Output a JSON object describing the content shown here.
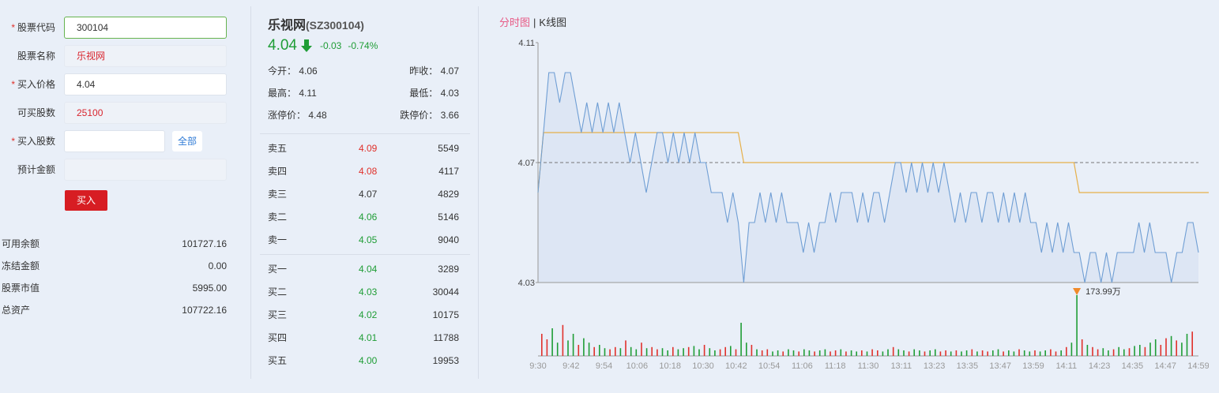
{
  "form": {
    "code_label": "股票代码",
    "code_value": "300104",
    "name_label": "股票名称",
    "name_value": "乐视网",
    "price_label": "买入价格",
    "price_value": "4.04",
    "avail_label": "可买股数",
    "avail_value": "25100",
    "qty_label": "买入股数",
    "qty_value": "",
    "all_button": "全部",
    "est_label": "预计金额",
    "est_value": "",
    "buy_button": "买入",
    "required_mark": "*"
  },
  "account": [
    {
      "label": "可用余额",
      "value": "101727.16"
    },
    {
      "label": "冻结金额",
      "value": "0.00"
    },
    {
      "label": "股票市值",
      "value": "5995.00"
    },
    {
      "label": "总资产",
      "value": "107722.16"
    }
  ],
  "quote": {
    "name": "乐视网",
    "code": "(SZ300104)",
    "price": "4.04",
    "change": "-0.03",
    "change_pct": "-0.74%",
    "open_label": "今开：",
    "open": "4.06",
    "prev_close_label": "昨收：",
    "prev_close": "4.07",
    "high_label": "最高：",
    "high": "4.11",
    "low_label": "最低：",
    "low": "4.03",
    "limit_up_label": "涨停价：",
    "limit_up": "4.48",
    "limit_down_label": "跌停价：",
    "limit_down": "3.66",
    "sell": [
      {
        "name": "卖五",
        "price": "4.09",
        "qty": "5549",
        "dir": "up"
      },
      {
        "name": "卖四",
        "price": "4.08",
        "qty": "4117",
        "dir": "up"
      },
      {
        "name": "卖三",
        "price": "4.07",
        "qty": "4829",
        "dir": "flat"
      },
      {
        "name": "卖二",
        "price": "4.06",
        "qty": "5146",
        "dir": "dn"
      },
      {
        "name": "卖一",
        "price": "4.05",
        "qty": "9040",
        "dir": "dn"
      }
    ],
    "buy": [
      {
        "name": "买一",
        "price": "4.04",
        "qty": "3289",
        "dir": "dn"
      },
      {
        "name": "买二",
        "price": "4.03",
        "qty": "30044",
        "dir": "dn"
      },
      {
        "name": "买三",
        "price": "4.02",
        "qty": "10175",
        "dir": "dn"
      },
      {
        "name": "买四",
        "price": "4.01",
        "qty": "11788",
        "dir": "dn"
      },
      {
        "name": "买五",
        "price": "4.00",
        "qty": "19953",
        "dir": "dn"
      }
    ]
  },
  "chart_tabs": {
    "intraday": "分时图",
    "separator": "|",
    "kline": "K线图"
  },
  "colors": {
    "price_line": "#6f9ed4",
    "avg_line": "#e6b04a",
    "fill": "#dde6f4",
    "up": "#e0312b",
    "down": "#1f9d36",
    "marker": "#f08a2a"
  },
  "chart_data": {
    "type": "line",
    "y_ticks": [
      "4.11",
      "4.07",
      "4.03"
    ],
    "ylim": [
      4.03,
      4.11
    ],
    "prev_close": 4.07,
    "x_ticks": [
      "9:30",
      "9:42",
      "9:54",
      "10:06",
      "10:18",
      "10:30",
      "10:42",
      "10:54",
      "11:06",
      "11:18",
      "11:30",
      "13:11",
      "13:23",
      "13:35",
      "13:47",
      "13:59",
      "14:11",
      "14:23",
      "14:35",
      "14:47",
      "14:59"
    ],
    "price_pattern": [
      4.06,
      4.08,
      4.1,
      4.1,
      4.09,
      4.1,
      4.1,
      4.09,
      4.08,
      4.09,
      4.08,
      4.09,
      4.08,
      4.09,
      4.08,
      4.09,
      4.08,
      4.07,
      4.08,
      4.07,
      4.06,
      4.07,
      4.08,
      4.08,
      4.07,
      4.08,
      4.07,
      4.08,
      4.07,
      4.08,
      4.07,
      4.07,
      4.06,
      4.06,
      4.06,
      4.05,
      4.06,
      4.05,
      4.03,
      4.05,
      4.05,
      4.06,
      4.05,
      4.06,
      4.05,
      4.06,
      4.05,
      4.05,
      4.05,
      4.04,
      4.05,
      4.04,
      4.05,
      4.05,
      4.06,
      4.05,
      4.06,
      4.06,
      4.06,
      4.05,
      4.06,
      4.05,
      4.06,
      4.06,
      4.05,
      4.06,
      4.07,
      4.07,
      4.06,
      4.07,
      4.06,
      4.07,
      4.06,
      4.07,
      4.06,
      4.07,
      4.06,
      4.05,
      4.06,
      4.05,
      4.06,
      4.06,
      4.05,
      4.06,
      4.06,
      4.05,
      4.06,
      4.05,
      4.06,
      4.05,
      4.06,
      4.05,
      4.05,
      4.04,
      4.05,
      4.04,
      4.05,
      4.04,
      4.05,
      4.04,
      4.04,
      4.03,
      4.04,
      4.04,
      4.03,
      4.04,
      4.03,
      4.04,
      4.04,
      4.04,
      4.04,
      4.05,
      4.04,
      4.05,
      4.04,
      4.04,
      4.04,
      4.03,
      4.04,
      4.04,
      4.05,
      4.05,
      4.04
    ],
    "avg_pattern": [
      4.06,
      4.08,
      4.08,
      4.08,
      4.08,
      4.08,
      4.08,
      4.08,
      4.08,
      4.08,
      4.08,
      4.08,
      4.08,
      4.08,
      4.08,
      4.08,
      4.08,
      4.08,
      4.08,
      4.08,
      4.08,
      4.08,
      4.08,
      4.08,
      4.08,
      4.08,
      4.08,
      4.08,
      4.08,
      4.08,
      4.08,
      4.08,
      4.08,
      4.08,
      4.08,
      4.08,
      4.08,
      4.08,
      4.07,
      4.07,
      4.07,
      4.07,
      4.07,
      4.07,
      4.07,
      4.07,
      4.07,
      4.07,
      4.07,
      4.07,
      4.07,
      4.07,
      4.07,
      4.07,
      4.07,
      4.07,
      4.07,
      4.07,
      4.07,
      4.07,
      4.07,
      4.07,
      4.07,
      4.07,
      4.07,
      4.07,
      4.07,
      4.07,
      4.07,
      4.07,
      4.07,
      4.07,
      4.07,
      4.07,
      4.07,
      4.07,
      4.07,
      4.07,
      4.07,
      4.07,
      4.07,
      4.07,
      4.07,
      4.07,
      4.07,
      4.07,
      4.07,
      4.07,
      4.07,
      4.07,
      4.07,
      4.07,
      4.07,
      4.07,
      4.07,
      4.07,
      4.07,
      4.07,
      4.07,
      4.07,
      4.06,
      4.06,
      4.06,
      4.06,
      4.06,
      4.06,
      4.06,
      4.06,
      4.06,
      4.06,
      4.06,
      4.06,
      4.06,
      4.06,
      4.06,
      4.06,
      4.06,
      4.06,
      4.06,
      4.06,
      4.06,
      4.06,
      4.06,
      4.06,
      4.06
    ],
    "volume_pattern": [
      0.2,
      0.15,
      0.25,
      0.12,
      0.28,
      0.14,
      0.2,
      0.1,
      0.16,
      0.12,
      0.08,
      0.1,
      0.07,
      0.06,
      0.08,
      0.07,
      0.14,
      0.08,
      0.06,
      0.12,
      0.07,
      0.08,
      0.06,
      0.07,
      0.05,
      0.08,
      0.06,
      0.07,
      0.08,
      0.09,
      0.06,
      0.1,
      0.07,
      0.05,
      0.06,
      0.08,
      0.09,
      0.06,
      0.3,
      0.12,
      0.1,
      0.06,
      0.05,
      0.06,
      0.04,
      0.05,
      0.04,
      0.06,
      0.05,
      0.04,
      0.06,
      0.05,
      0.04,
      0.05,
      0.06,
      0.04,
      0.05,
      0.06,
      0.04,
      0.05,
      0.04,
      0.05,
      0.04,
      0.06,
      0.05,
      0.04,
      0.06,
      0.08,
      0.06,
      0.05,
      0.04,
      0.06,
      0.05,
      0.04,
      0.05,
      0.06,
      0.04,
      0.05,
      0.04,
      0.05,
      0.04,
      0.05,
      0.06,
      0.04,
      0.05,
      0.04,
      0.05,
      0.06,
      0.04,
      0.05,
      0.04,
      0.06,
      0.05,
      0.04,
      0.05,
      0.04,
      0.05,
      0.06,
      0.04,
      0.05,
      0.08,
      0.12,
      0.55,
      0.15,
      0.1,
      0.08,
      0.06,
      0.07,
      0.05,
      0.06,
      0.08,
      0.06,
      0.07,
      0.09,
      0.1,
      0.08,
      0.12,
      0.15,
      0.1,
      0.16,
      0.18,
      0.14,
      0.12,
      0.2,
      0.22
    ],
    "volume_annotation": "173.99万"
  }
}
